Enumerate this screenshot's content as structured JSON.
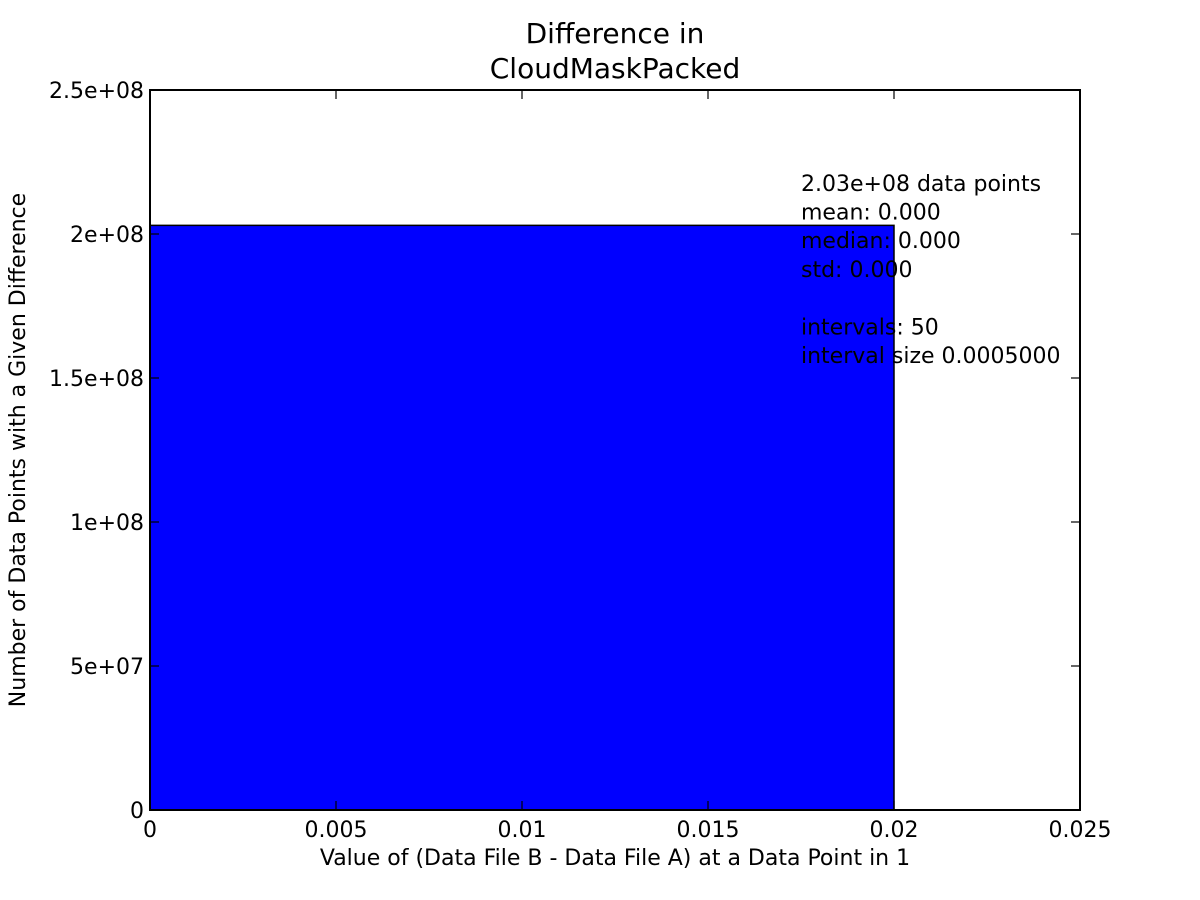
{
  "chart_data": {
    "type": "bar",
    "title_lines": [
      "Difference in",
      "CloudMaskPacked"
    ],
    "xlabel": "Value of (Data File B - Data File A) at a Data Point in 1",
    "ylabel": "Number of Data Points with a Given Difference",
    "xlim": [
      0,
      0.025
    ],
    "ylim": [
      0,
      250000000
    ],
    "x_ticks": [
      0,
      0.005,
      0.01,
      0.015,
      0.02,
      0.025
    ],
    "x_tick_labels": [
      "0",
      "0.005",
      "0.01",
      "0.015",
      "0.02",
      "0.025"
    ],
    "y_ticks": [
      0,
      50000000,
      100000000,
      150000000,
      200000000,
      250000000
    ],
    "y_tick_labels": [
      "0",
      "5e+07",
      "1e+08",
      "1.5e+08",
      "2e+08",
      "2.5e+08"
    ],
    "bars": [
      {
        "x0": 0,
        "x1": 0.02,
        "value": 203000000
      }
    ],
    "bar_color": "#0000ff",
    "annotation_lines": [
      "2.03e+08 data points",
      "mean: 0.000",
      "median: 0.000",
      "std: 0.000",
      "",
      "intervals: 50",
      "interval size 0.0005000"
    ],
    "annotation_anchor": {
      "x": 0.0175,
      "y": 215000000
    },
    "grid": false
  }
}
